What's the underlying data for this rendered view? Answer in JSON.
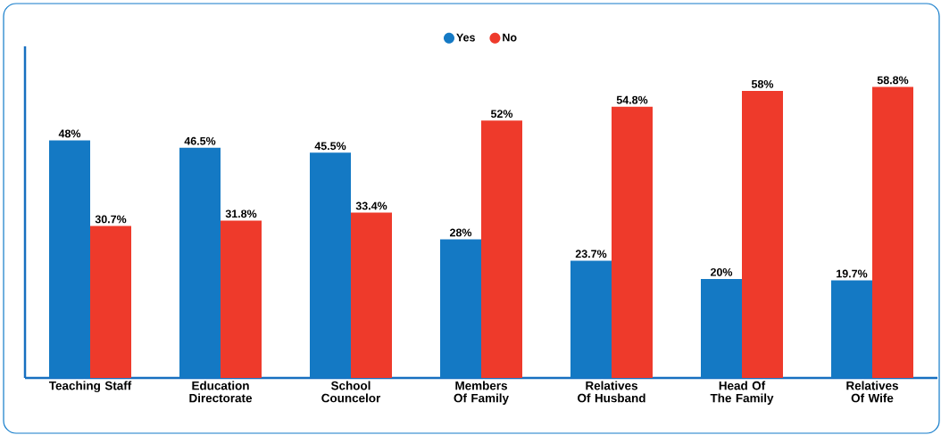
{
  "chart_data": {
    "type": "bar",
    "categories": [
      "Teaching Staff",
      "Education Directorate",
      "School Councelor",
      "Members Of Family",
      "Relatives Of Husband",
      "Head Of The Family",
      "Relatives Of Wife"
    ],
    "series": [
      {
        "name": "Yes",
        "color": "#1479c4",
        "values": [
          48,
          46.5,
          45.5,
          28,
          23.7,
          20,
          19.7
        ],
        "value_labels": [
          "48%",
          "46.5%",
          "45.5%",
          "28%",
          "23.7%",
          "20%",
          "19.7%"
        ]
      },
      {
        "name": "No",
        "color": "#ee3a2b",
        "values": [
          30.7,
          31.8,
          33.4,
          52,
          54.8,
          58,
          58.8
        ],
        "value_labels": [
          "30.7%",
          "31.8%",
          "33.4%",
          "52%",
          "54.8%",
          "58%",
          "58.8%"
        ]
      }
    ],
    "ylim": [
      0,
      67
    ],
    "legend": "top",
    "grid": false
  }
}
